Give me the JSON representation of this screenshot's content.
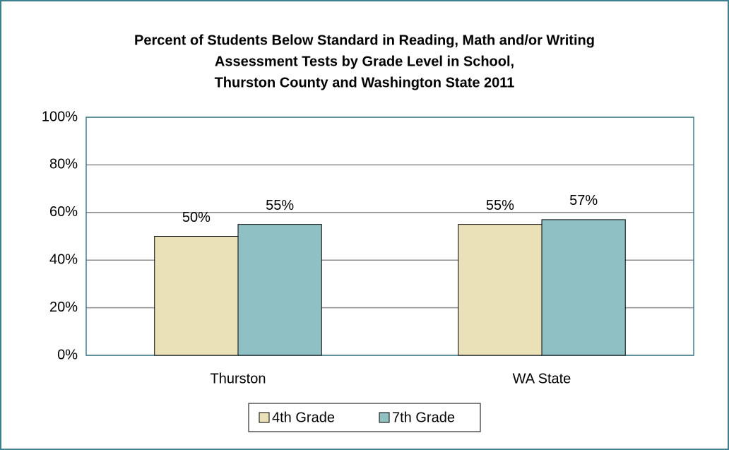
{
  "chart_data": {
    "type": "bar",
    "title": [
      "Percent of Students Below Standard in Reading, Math and/or Writing",
      "Assessment Tests by Grade Level in School,",
      "Thurston County and Washington State 2011"
    ],
    "categories": [
      "Thurston",
      "WA State"
    ],
    "series": [
      {
        "name": "4th Grade",
        "color": "#ebe1b9",
        "values": [
          50,
          55
        ],
        "value_labels": [
          "50%",
          "55%"
        ]
      },
      {
        "name": "7th Grade",
        "color": "#8fc1c4",
        "values": [
          55,
          57
        ],
        "value_labels": [
          "55%",
          "57%"
        ]
      }
    ],
    "ylim": [
      0,
      100
    ],
    "yticks": [
      {
        "value": 0,
        "label": "0%"
      },
      {
        "value": 20,
        "label": "20%"
      },
      {
        "value": 40,
        "label": "40%"
      },
      {
        "value": 60,
        "label": "60%"
      },
      {
        "value": 80,
        "label": "80%"
      },
      {
        "value": 100,
        "label": "100%"
      }
    ],
    "grid": true,
    "legend": "bottom"
  }
}
